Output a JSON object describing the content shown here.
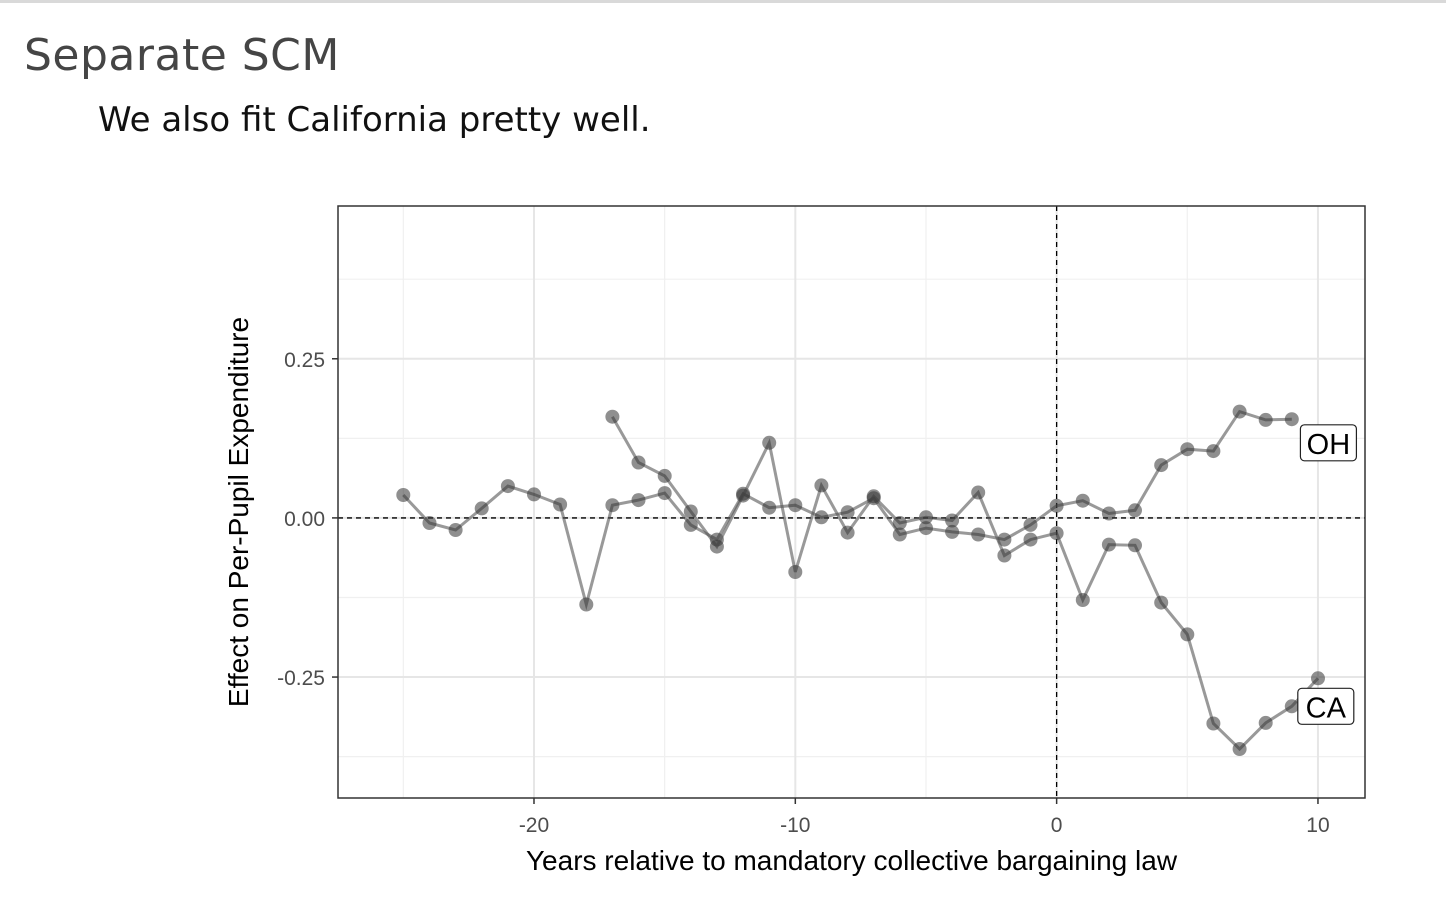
{
  "slide": {
    "title": "Separate SCM",
    "subtitle": "We also fit California pretty well."
  },
  "chart_data": {
    "type": "line",
    "title": "",
    "xlabel": "Years relative to mandatory collective bargaining law",
    "ylabel": "Effect on Per-Pupil Expenditure",
    "xlim": [
      -27.5,
      11.8
    ],
    "ylim": [
      -0.44,
      0.49
    ],
    "xticks": [
      -20,
      -10,
      0,
      10
    ],
    "xtick_labels": [
      "-20",
      "-10",
      "0",
      "10"
    ],
    "yticks": [
      -0.25,
      0.0,
      0.25
    ],
    "ytick_labels": [
      "-0.25",
      "0.00",
      "0.25"
    ],
    "minor_xticks": [
      -25,
      -15,
      -5,
      5
    ],
    "minor_yticks": [
      -0.375,
      -0.125,
      0.125,
      0.375
    ],
    "grid": true,
    "reference_lines": {
      "x": 0,
      "y": 0,
      "style": "dashed"
    },
    "series": [
      {
        "name": "OH",
        "color": "#555555",
        "x": [
          -25,
          -24,
          -23,
          -22,
          -21,
          -20,
          -19,
          -18,
          -17,
          -16,
          -15,
          -14,
          -13,
          -12,
          -11,
          -10,
          -9,
          -8,
          -7,
          -6,
          -5,
          -4,
          -3,
          -2,
          -1,
          0,
          1,
          2,
          3,
          4,
          5,
          6,
          7,
          8,
          9
        ],
        "y": [
          0.036,
          -0.008,
          -0.019,
          0.015,
          0.05,
          0.037,
          0.021,
          -0.136,
          0.02,
          0.028,
          0.039,
          -0.011,
          -0.034,
          0.038,
          0.016,
          0.02,
          0.001,
          0.009,
          0.031,
          -0.026,
          -0.016,
          -0.022,
          -0.026,
          -0.034,
          -0.011,
          0.019,
          0.027,
          0.007,
          0.012,
          0.083,
          0.108,
          0.105,
          0.167,
          0.154,
          0.155
        ]
      },
      {
        "name": "CA",
        "color": "#555555",
        "x": [
          -17,
          -16,
          -15,
          -14,
          -13,
          -12,
          -11,
          -10,
          -9,
          -8,
          -7,
          -6,
          -5,
          -4,
          -3,
          -2,
          -1,
          0,
          1,
          2,
          3,
          4,
          5,
          6,
          7,
          8,
          9,
          10
        ],
        "y": [
          0.159,
          0.087,
          0.066,
          0.01,
          -0.045,
          0.035,
          0.118,
          -0.085,
          0.051,
          -0.023,
          0.034,
          -0.008,
          0.001,
          -0.004,
          0.04,
          -0.059,
          -0.034,
          -0.024,
          -0.129,
          -0.042,
          -0.043,
          -0.133,
          -0.183,
          -0.323,
          -0.363,
          -0.322,
          -0.296,
          -0.252
        ]
      }
    ],
    "annotations": [
      {
        "text": "OH",
        "x": 10.4,
        "y": 0.118
      },
      {
        "text": "CA",
        "x": 10.3,
        "y": -0.296
      }
    ]
  }
}
